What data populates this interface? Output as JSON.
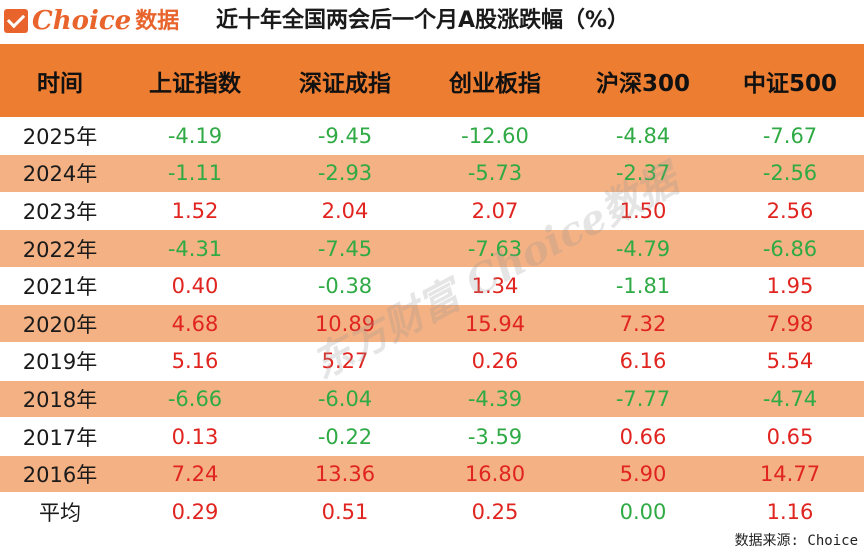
{
  "brand": {
    "logo_text": "Choice",
    "logo_sub": "数据"
  },
  "title": "近十年全国两会后一个月A股涨跌幅（%）",
  "table": {
    "headers": [
      "时间",
      "上证指数",
      "深证成指",
      "创业板指",
      "沪深300",
      "中证500"
    ],
    "rows": [
      {
        "label": "2025年",
        "values": [
          "-4.19",
          "-9.45",
          "-12.60",
          "-4.84",
          "-7.67"
        ]
      },
      {
        "label": "2024年",
        "values": [
          "-1.11",
          "-2.93",
          "-5.73",
          "-2.37",
          "-2.56"
        ]
      },
      {
        "label": "2023年",
        "values": [
          "1.52",
          "2.04",
          "2.07",
          "1.50",
          "2.56"
        ]
      },
      {
        "label": "2022年",
        "values": [
          "-4.31",
          "-7.45",
          "-7.63",
          "-4.79",
          "-6.86"
        ]
      },
      {
        "label": "2021年",
        "values": [
          "0.40",
          "-0.38",
          "1.34",
          "-1.81",
          "1.95"
        ]
      },
      {
        "label": "2020年",
        "values": [
          "4.68",
          "10.89",
          "15.94",
          "7.32",
          "7.98"
        ]
      },
      {
        "label": "2019年",
        "values": [
          "5.16",
          "5.27",
          "0.26",
          "6.16",
          "5.54"
        ]
      },
      {
        "label": "2018年",
        "values": [
          "-6.66",
          "-6.04",
          "-4.39",
          "-7.77",
          "-4.74"
        ]
      },
      {
        "label": "2017年",
        "values": [
          "0.13",
          "-0.22",
          "-3.59",
          "0.66",
          "0.65"
        ]
      },
      {
        "label": "2016年",
        "values": [
          "7.24",
          "13.36",
          "16.80",
          "5.90",
          "14.77"
        ]
      },
      {
        "label": "平均",
        "values": [
          "0.29",
          "0.51",
          "0.25",
          "0.00",
          "1.16"
        ]
      }
    ]
  },
  "watermark": "东方财富 Choice数据",
  "source": "数据来源: Choice",
  "colors": {
    "header_bg": "#ed7d31",
    "alt_row_bg": "#f4b183",
    "positive": "#e0241f",
    "negative": "#2faa45",
    "brand": "#e8642c"
  }
}
